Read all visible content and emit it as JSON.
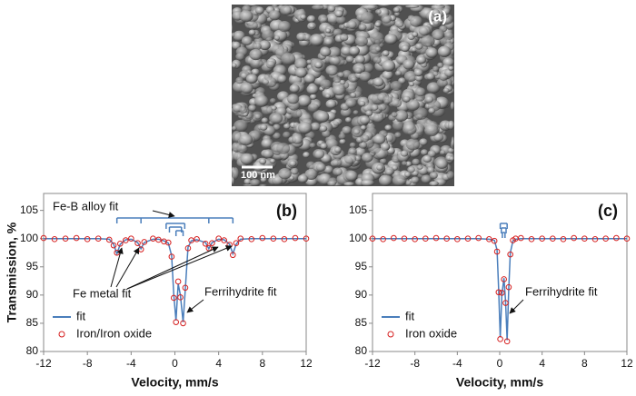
{
  "chart_data": [
    {
      "type": "image",
      "panel_label": "(a)",
      "scale_label": "100 nm"
    },
    {
      "type": "scatter",
      "panel_label": "(b)",
      "xlabel": "Velocity, mm/s",
      "ylabel": "Transmission, %",
      "xlim": [
        -12,
        12
      ],
      "xticks": [
        -12,
        -8,
        -4,
        0,
        4,
        8,
        12
      ],
      "ylim": [
        80,
        108
      ],
      "yticks": [
        80,
        85,
        90,
        95,
        100,
        105
      ],
      "legend": "lower left",
      "annotations": [
        "Fe-B alloy fit",
        "Fe metal fit",
        "Ferrihydrite fit"
      ],
      "x": [
        -12,
        -11,
        -10,
        -9,
        -8,
        -7,
        -6,
        -5.6,
        -5.3,
        -5,
        -4.5,
        -4,
        -3.4,
        -3.1,
        -2.8,
        -2,
        -1.5,
        -1,
        -0.6,
        -0.3,
        -0.1,
        0.1,
        0.3,
        0.5,
        0.75,
        0.95,
        1.2,
        1.5,
        2,
        2.8,
        3.1,
        3.4,
        4,
        4.5,
        5,
        5.3,
        5.6,
        6,
        7,
        8,
        9,
        10,
        11,
        12
      ],
      "series": [
        {
          "name": "fit",
          "mode": "line",
          "color": "#4a7ebb",
          "values": [
            100,
            100,
            100,
            100,
            100,
            100,
            99.9,
            99,
            97.3,
            99,
            99.8,
            99.9,
            99.3,
            98.2,
            99.3,
            99.9,
            99.9,
            99.6,
            99.2,
            97,
            90,
            85.5,
            92,
            90,
            85.2,
            91,
            98.5,
            99.6,
            99.8,
            99.3,
            98.2,
            99.3,
            99.9,
            99.8,
            99,
            97.3,
            99,
            99.9,
            100,
            100,
            100,
            100,
            100,
            100
          ]
        },
        {
          "name": "Iron/Iron oxide",
          "mode": "markers",
          "color": "#d62020",
          "values": [
            100.1,
            99.9,
            100,
            100.1,
            99.9,
            100,
            99.8,
            98.8,
            97.5,
            99.1,
            99.7,
            100,
            99.2,
            98.1,
            99.4,
            100,
            99.8,
            99.5,
            99.3,
            96.8,
            89.5,
            85.2,
            92.4,
            89.6,
            85,
            91.3,
            98.3,
            99.7,
            99.9,
            99.1,
            98.3,
            99.2,
            100,
            99.7,
            98.9,
            97.1,
            99.2,
            100,
            99.9,
            100.1,
            100,
            99.9,
            100.1,
            100
          ]
        }
      ]
    },
    {
      "type": "scatter",
      "panel_label": "(c)",
      "xlabel": "Velocity, mm/s",
      "xlim": [
        -12,
        12
      ],
      "xticks": [
        -12,
        -8,
        -4,
        0,
        4,
        8,
        12
      ],
      "ylim": [
        80,
        108
      ],
      "yticks": [
        80,
        85,
        90,
        95,
        100,
        105
      ],
      "legend": "lower left",
      "annotations": [
        "Ferrihydrite fit"
      ],
      "x": [
        -12,
        -11,
        -10,
        -9,
        -8,
        -7,
        -6,
        -5,
        -4,
        -3,
        -2,
        -1,
        -0.5,
        -0.25,
        -0.1,
        0.05,
        0.2,
        0.4,
        0.55,
        0.7,
        0.85,
        1,
        1.25,
        1.5,
        2,
        3,
        4,
        5,
        6,
        7,
        8,
        9,
        10,
        11,
        12
      ],
      "series": [
        {
          "name": "fit",
          "mode": "line",
          "color": "#4a7ebb",
          "values": [
            100,
            100,
            100,
            100,
            100,
            100,
            100,
            100,
            100,
            100,
            100,
            99.9,
            99.7,
            98,
            91,
            82.5,
            90,
            93,
            89,
            82,
            91,
            97.5,
            99.6,
            99.9,
            100,
            100,
            100,
            100,
            100,
            100,
            100,
            100,
            100,
            100,
            100
          ]
        },
        {
          "name": "Iron oxide",
          "mode": "markers",
          "color": "#d62020",
          "values": [
            100,
            99.9,
            100.1,
            100,
            99.9,
            100,
            100.1,
            100,
            99.9,
            100,
            100.1,
            99.9,
            99.6,
            97.7,
            90.5,
            82.2,
            90.4,
            92.8,
            88.6,
            81.8,
            91.4,
            97.2,
            99.7,
            100,
            100.1,
            99.9,
            100,
            100,
            99.9,
            100.1,
            100,
            99.9,
            100,
            100.1,
            100
          ]
        }
      ]
    }
  ]
}
